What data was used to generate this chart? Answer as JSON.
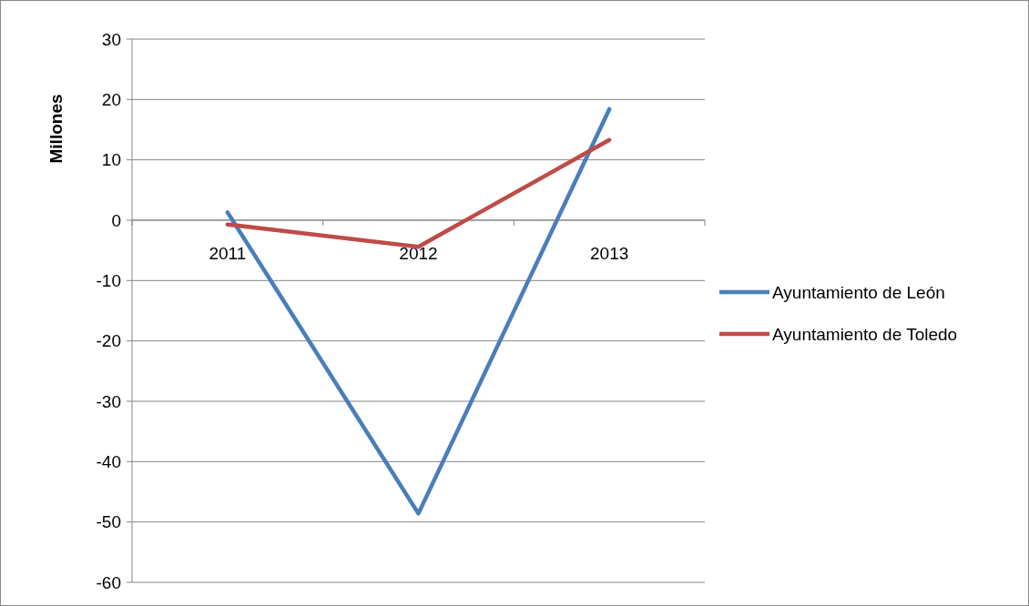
{
  "chart_data": {
    "type": "line",
    "ylabel": "Millones",
    "categories": [
      "2011",
      "2012",
      "2013"
    ],
    "series": [
      {
        "name": "Ayuntamiento de León",
        "color": "#4a7ebb",
        "values": [
          1.3,
          -48.6,
          18.4
        ]
      },
      {
        "name": "Ayuntamiento de Toledo",
        "color": "#be4b48",
        "values": [
          -0.7,
          -4.4,
          13.3
        ]
      }
    ],
    "ylim": [
      -60,
      30
    ],
    "yticks": [
      -60,
      -50,
      -40,
      -30,
      -20,
      -10,
      0,
      10,
      20,
      30
    ],
    "grid": "y",
    "legend": "right",
    "marker": "none",
    "line_style": "solid"
  }
}
